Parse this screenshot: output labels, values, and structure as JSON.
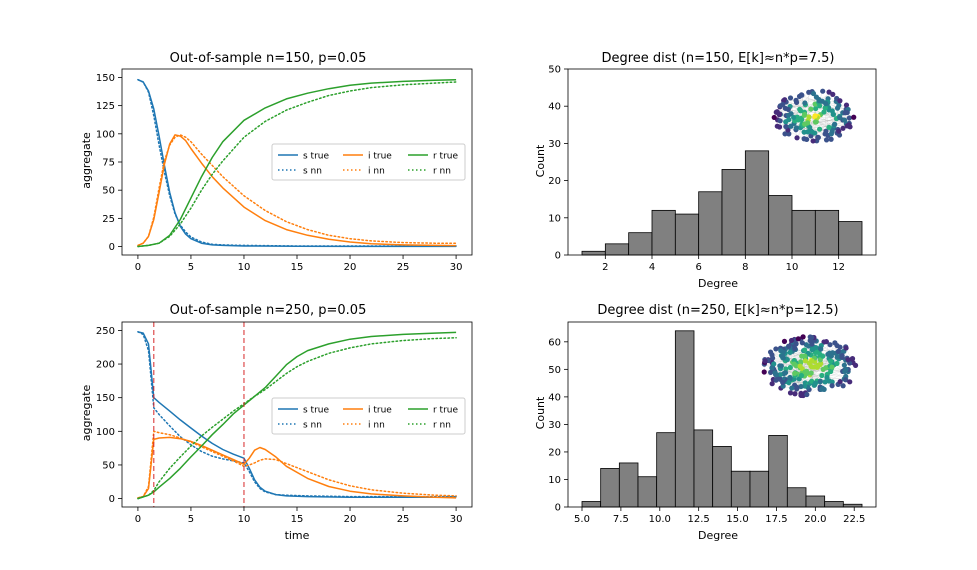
{
  "colors": {
    "s": "#1f77b4",
    "i": "#ff7f0e",
    "r": "#2ca02c",
    "bar": "#808080",
    "vline": "#d62728"
  },
  "chart_data": [
    {
      "type": "line",
      "title": "Out-of-sample n=150, p=0.05",
      "xlabel": "",
      "ylabel": "aggregate",
      "xlim": [
        -1.5,
        31.5
      ],
      "ylim": [
        -7.5,
        157.5
      ],
      "xticks": [
        0,
        5,
        10,
        15,
        20,
        25,
        30
      ],
      "yticks": [
        0,
        25,
        50,
        75,
        100,
        125,
        150
      ],
      "legend": [
        "s true",
        "i true",
        "r true",
        "s nn",
        "i nn",
        "r nn"
      ],
      "legend_position": "center-right",
      "series": [
        {
          "name": "s true",
          "key": "s",
          "style": "solid",
          "x": [
            0,
            0.5,
            1,
            1.5,
            2,
            2.5,
            3,
            3.5,
            4,
            4.5,
            5,
            6,
            7,
            8,
            10,
            15,
            20,
            25,
            30
          ],
          "y": [
            148,
            146,
            138,
            122,
            98,
            72,
            48,
            30,
            18,
            11,
            7,
            3,
            1.5,
            1,
            0.5,
            0.2,
            0.1,
            0.1,
            0.1
          ]
        },
        {
          "name": "s nn",
          "key": "s",
          "style": "dotted",
          "x": [
            0,
            0.5,
            1,
            1.5,
            2,
            2.5,
            3,
            3.5,
            4,
            4.5,
            5,
            6,
            7,
            8,
            10,
            15,
            20,
            25,
            30
          ],
          "y": [
            148,
            146,
            137,
            116,
            90,
            66,
            45,
            29,
            19,
            13,
            8.5,
            4,
            2,
            1.5,
            1,
            0.5,
            0.5,
            0.5,
            0.5
          ]
        },
        {
          "name": "i true",
          "key": "i",
          "style": "solid",
          "x": [
            0,
            0.5,
            1,
            1.5,
            2,
            2.5,
            3,
            3.5,
            4,
            4.5,
            5,
            6,
            7,
            8,
            10,
            12,
            14,
            16,
            18,
            20,
            22,
            25,
            28,
            30
          ],
          "y": [
            1,
            3,
            9,
            24,
            48,
            73,
            91,
            99,
            98,
            94,
            87,
            74,
            62,
            52,
            35,
            23,
            15,
            10,
            6.5,
            4,
            2.5,
            1.5,
            1,
            0.8
          ]
        },
        {
          "name": "i nn",
          "key": "i",
          "style": "dotted",
          "x": [
            0,
            0.5,
            1,
            1.5,
            2,
            2.5,
            3,
            3.5,
            4,
            4.5,
            5,
            6,
            7,
            8,
            10,
            12,
            14,
            16,
            18,
            20,
            22,
            25,
            28,
            30
          ],
          "y": [
            1,
            3,
            9,
            26,
            52,
            76,
            90,
            97,
            99,
            97,
            93,
            82,
            72,
            62,
            45,
            32,
            22,
            15,
            10,
            7,
            5,
            3.5,
            3,
            3
          ]
        },
        {
          "name": "r true",
          "key": "r",
          "style": "solid",
          "x": [
            0,
            1,
            2,
            3,
            4,
            5,
            6,
            7,
            8,
            10,
            12,
            14,
            16,
            18,
            20,
            22,
            25,
            28,
            30
          ],
          "y": [
            0,
            1,
            3,
            10,
            24,
            43,
            62,
            79,
            93,
            112,
            123,
            131,
            136,
            140,
            143,
            145,
            146.5,
            147.5,
            148
          ]
        },
        {
          "name": "r nn",
          "key": "r",
          "style": "dotted",
          "x": [
            0,
            1,
            2,
            3,
            4,
            5,
            6,
            7,
            8,
            10,
            12,
            14,
            16,
            18,
            20,
            22,
            25,
            28,
            30
          ],
          "y": [
            0,
            1,
            3,
            9,
            20,
            34,
            50,
            64,
            76,
            97,
            111,
            121,
            128,
            134,
            138,
            141,
            143.5,
            145,
            146
          ]
        }
      ]
    },
    {
      "type": "bar",
      "title": "Degree dist (n=150, E[k]≈n*p=7.5)",
      "xlabel": "Degree",
      "ylabel": "Count",
      "xlim": [
        0.4,
        13.6
      ],
      "ylim": [
        0,
        50
      ],
      "xticks": [
        2,
        4,
        6,
        8,
        10,
        12
      ],
      "yticks": [
        0,
        10,
        20,
        30,
        40,
        50
      ],
      "bin_edges": [
        1,
        2,
        3,
        4,
        5,
        6,
        7,
        8,
        9,
        10,
        11,
        12,
        13
      ],
      "values": [
        1,
        3,
        6,
        12,
        11,
        17,
        23,
        28,
        16,
        12,
        12,
        9
      ]
    },
    {
      "type": "line",
      "title": "Out-of-sample n=250, p=0.05",
      "xlabel": "time",
      "ylabel": "aggregate",
      "xlim": [
        -1.5,
        31.5
      ],
      "ylim": [
        -12.5,
        262.5
      ],
      "xticks": [
        0,
        5,
        10,
        15,
        20,
        25,
        30
      ],
      "yticks": [
        0,
        50,
        100,
        150,
        200,
        250
      ],
      "vlines": [
        1.5,
        10
      ],
      "legend": [
        "s true",
        "i true",
        "r true",
        "s nn",
        "i nn",
        "r nn"
      ],
      "legend_position": "center-right",
      "series": [
        {
          "name": "s true",
          "key": "s",
          "style": "solid",
          "x": [
            0,
            0.5,
            1,
            1.5,
            2,
            3,
            4,
            5,
            6,
            7,
            8,
            9,
            10,
            10.5,
            11,
            11.5,
            12,
            13,
            14,
            16,
            20,
            25,
            30
          ],
          "y": [
            248,
            246,
            230,
            150,
            143,
            130,
            117,
            105,
            93,
            82,
            73,
            66,
            60,
            45,
            28,
            17,
            11,
            6,
            4,
            3,
            2,
            2,
            2
          ]
        },
        {
          "name": "s nn",
          "key": "s",
          "style": "dotted",
          "x": [
            0,
            0.5,
            1,
            1.5,
            2,
            3,
            4,
            5,
            6,
            7,
            8,
            9,
            10,
            10.5,
            11,
            11.5,
            12,
            13,
            14,
            16,
            20,
            25,
            30
          ],
          "y": [
            248,
            244,
            220,
            135,
            125,
            108,
            92,
            80,
            70,
            63,
            59,
            56,
            53,
            40,
            25,
            15,
            10,
            6,
            5,
            4,
            3,
            3,
            3
          ]
        },
        {
          "name": "i true",
          "key": "i",
          "style": "solid",
          "x": [
            0,
            0.5,
            1,
            1.5,
            2,
            3,
            4,
            5,
            6,
            7,
            8,
            9,
            10,
            10.5,
            11,
            11.5,
            12,
            13,
            14,
            16,
            18,
            20,
            22,
            25,
            28,
            30
          ],
          "y": [
            1,
            3,
            15,
            88,
            90,
            91,
            89,
            85,
            79,
            72,
            65,
            58,
            51,
            60,
            72,
            76,
            73,
            62,
            48,
            30,
            18,
            11,
            7,
            4,
            2,
            1
          ]
        },
        {
          "name": "i nn",
          "key": "i",
          "style": "dotted",
          "x": [
            0,
            0.5,
            1,
            1.5,
            2,
            3,
            4,
            5,
            6,
            7,
            8,
            9,
            10,
            10.5,
            11,
            11.5,
            12,
            13,
            14,
            16,
            18,
            20,
            22,
            25,
            28,
            30
          ],
          "y": [
            1,
            3,
            18,
            100,
            98,
            95,
            90,
            84,
            77,
            70,
            63,
            56,
            48,
            50,
            53,
            57,
            59,
            58,
            52,
            40,
            28,
            19,
            13,
            8,
            5,
            4
          ]
        },
        {
          "name": "r true",
          "key": "r",
          "style": "solid",
          "x": [
            0,
            1,
            1.5,
            2,
            3,
            4,
            5,
            6,
            7,
            8,
            9,
            10,
            11,
            12,
            13,
            14,
            15,
            16,
            18,
            20,
            22,
            25,
            28,
            30
          ],
          "y": [
            0,
            5,
            10,
            17,
            30,
            45,
            62,
            78,
            95,
            110,
            126,
            139,
            152,
            165,
            182,
            199,
            211,
            220,
            230,
            237,
            241,
            244,
            246,
            247
          ]
        },
        {
          "name": "r nn",
          "key": "r",
          "style": "dotted",
          "x": [
            0,
            1,
            1.5,
            2,
            3,
            4,
            5,
            6,
            7,
            8,
            9,
            10,
            11,
            12,
            13,
            14,
            15,
            16,
            18,
            20,
            22,
            25,
            28,
            30
          ],
          "y": [
            0,
            5,
            12,
            25,
            45,
            62,
            78,
            93,
            106,
            118,
            130,
            141,
            152,
            162,
            174,
            186,
            196,
            204,
            216,
            224,
            230,
            235,
            238,
            239
          ]
        }
      ]
    },
    {
      "type": "bar",
      "title": "Degree dist (n=250, E[k]≈n*p=12.5)",
      "xlabel": "Degree",
      "ylabel": "Count",
      "xlim": [
        4.1,
        23.9
      ],
      "ylim": [
        0,
        67.2
      ],
      "xticks": [
        5.0,
        7.5,
        10.0,
        12.5,
        15.0,
        17.5,
        20.0,
        22.5
      ],
      "xtick_labels": [
        "5.0",
        "7.5",
        "10.0",
        "12.5",
        "15.0",
        "17.5",
        "20.0",
        "22.5"
      ],
      "yticks": [
        0,
        10,
        20,
        30,
        40,
        50,
        60
      ],
      "bin_edges": [
        5.0,
        6.2,
        7.4,
        8.6,
        9.8,
        11.0,
        12.2,
        13.4,
        14.6,
        15.8,
        17.0,
        18.2,
        19.4,
        20.6,
        21.8,
        23.0
      ],
      "values": [
        2,
        14,
        16,
        11,
        27,
        64,
        28,
        22,
        13,
        13,
        26,
        7,
        4,
        2,
        1
      ]
    }
  ]
}
